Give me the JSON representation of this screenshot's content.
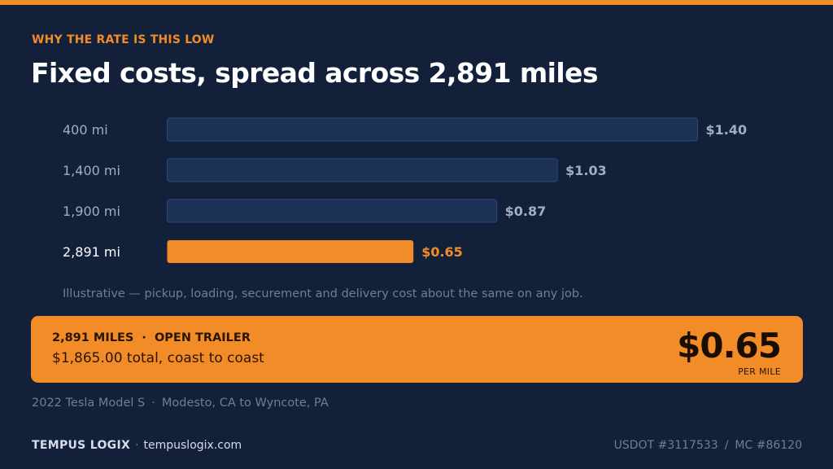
{
  "header": {
    "eyebrow": "WHY THE RATE IS THIS LOW",
    "title": "Fixed costs, spread across 2,891 miles"
  },
  "chart_data": {
    "type": "bar",
    "orientation": "horizontal",
    "categories": [
      "400 mi",
      "1,400 mi",
      "1,900 mi",
      "2,891 mi"
    ],
    "values": [
      1.4,
      1.03,
      0.87,
      0.65
    ],
    "value_labels": [
      "$1.40",
      "$1.03",
      "$0.87",
      "$0.65"
    ],
    "highlight_index": 3,
    "xlim": [
      0,
      1.4
    ],
    "title": "",
    "xlabel": "",
    "ylabel": "",
    "grid": false,
    "colors": {
      "bar": "#1c3156",
      "bar_border": "#2d4a78",
      "highlight": "#f28c28",
      "label": "#a3adc2",
      "value": "#a3adc2"
    }
  },
  "note": "Illustrative — pickup, loading, securement and delivery cost about the same on any job.",
  "callout": {
    "headline_miles": "2,891 MILES",
    "headline_sep": "·",
    "headline_trailer": "OPEN TRAILER",
    "subline": "$1,865.00 total, coast to coast",
    "rate": "$0.65",
    "rate_unit": "PER MILE"
  },
  "vehicle": {
    "model": "2022 Tesla Model S",
    "sep": "·",
    "route": "Modesto, CA to Wyncote, PA"
  },
  "footer": {
    "brand": "TEMPUS LOGIX",
    "sep": "·",
    "site": "tempuslogix.com",
    "usdot": "USDOT #3117533",
    "slash": "/",
    "mc": "MC #86120"
  },
  "colors": {
    "background": "#122039",
    "accent": "#f28c28"
  }
}
